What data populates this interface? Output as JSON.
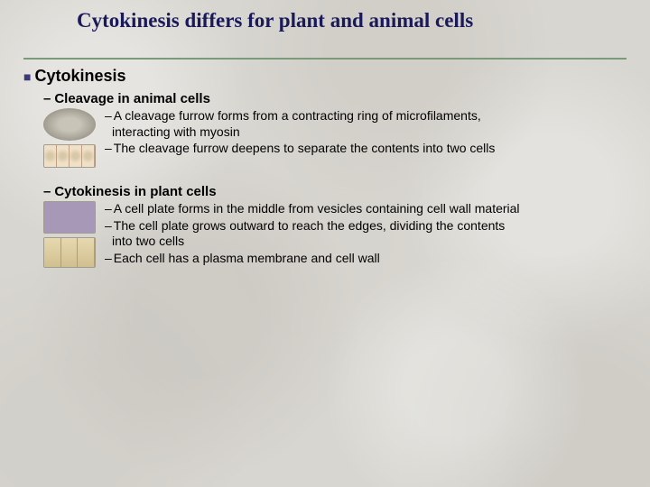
{
  "title": "Cytokinesis differs for plant and animal cells",
  "main": "Cytokinesis",
  "section1": {
    "heading": "Cleavage in animal cells",
    "b1a": "A cleavage furrow forms from a contracting ring of microfilaments,",
    "b1b": "interacting with myosin",
    "b2": "The cleavage furrow deepens to separate the contents into two cells"
  },
  "section2": {
    "heading": "Cytokinesis in plant cells",
    "b1": "A cell plate forms in the middle from vesicles containing cell wall material",
    "b2a": "The cell plate grows outward to reach the edges, dividing the contents",
    "b2b": "into two cells",
    "b3": "Each cell has a plasma membrane and cell wall"
  }
}
